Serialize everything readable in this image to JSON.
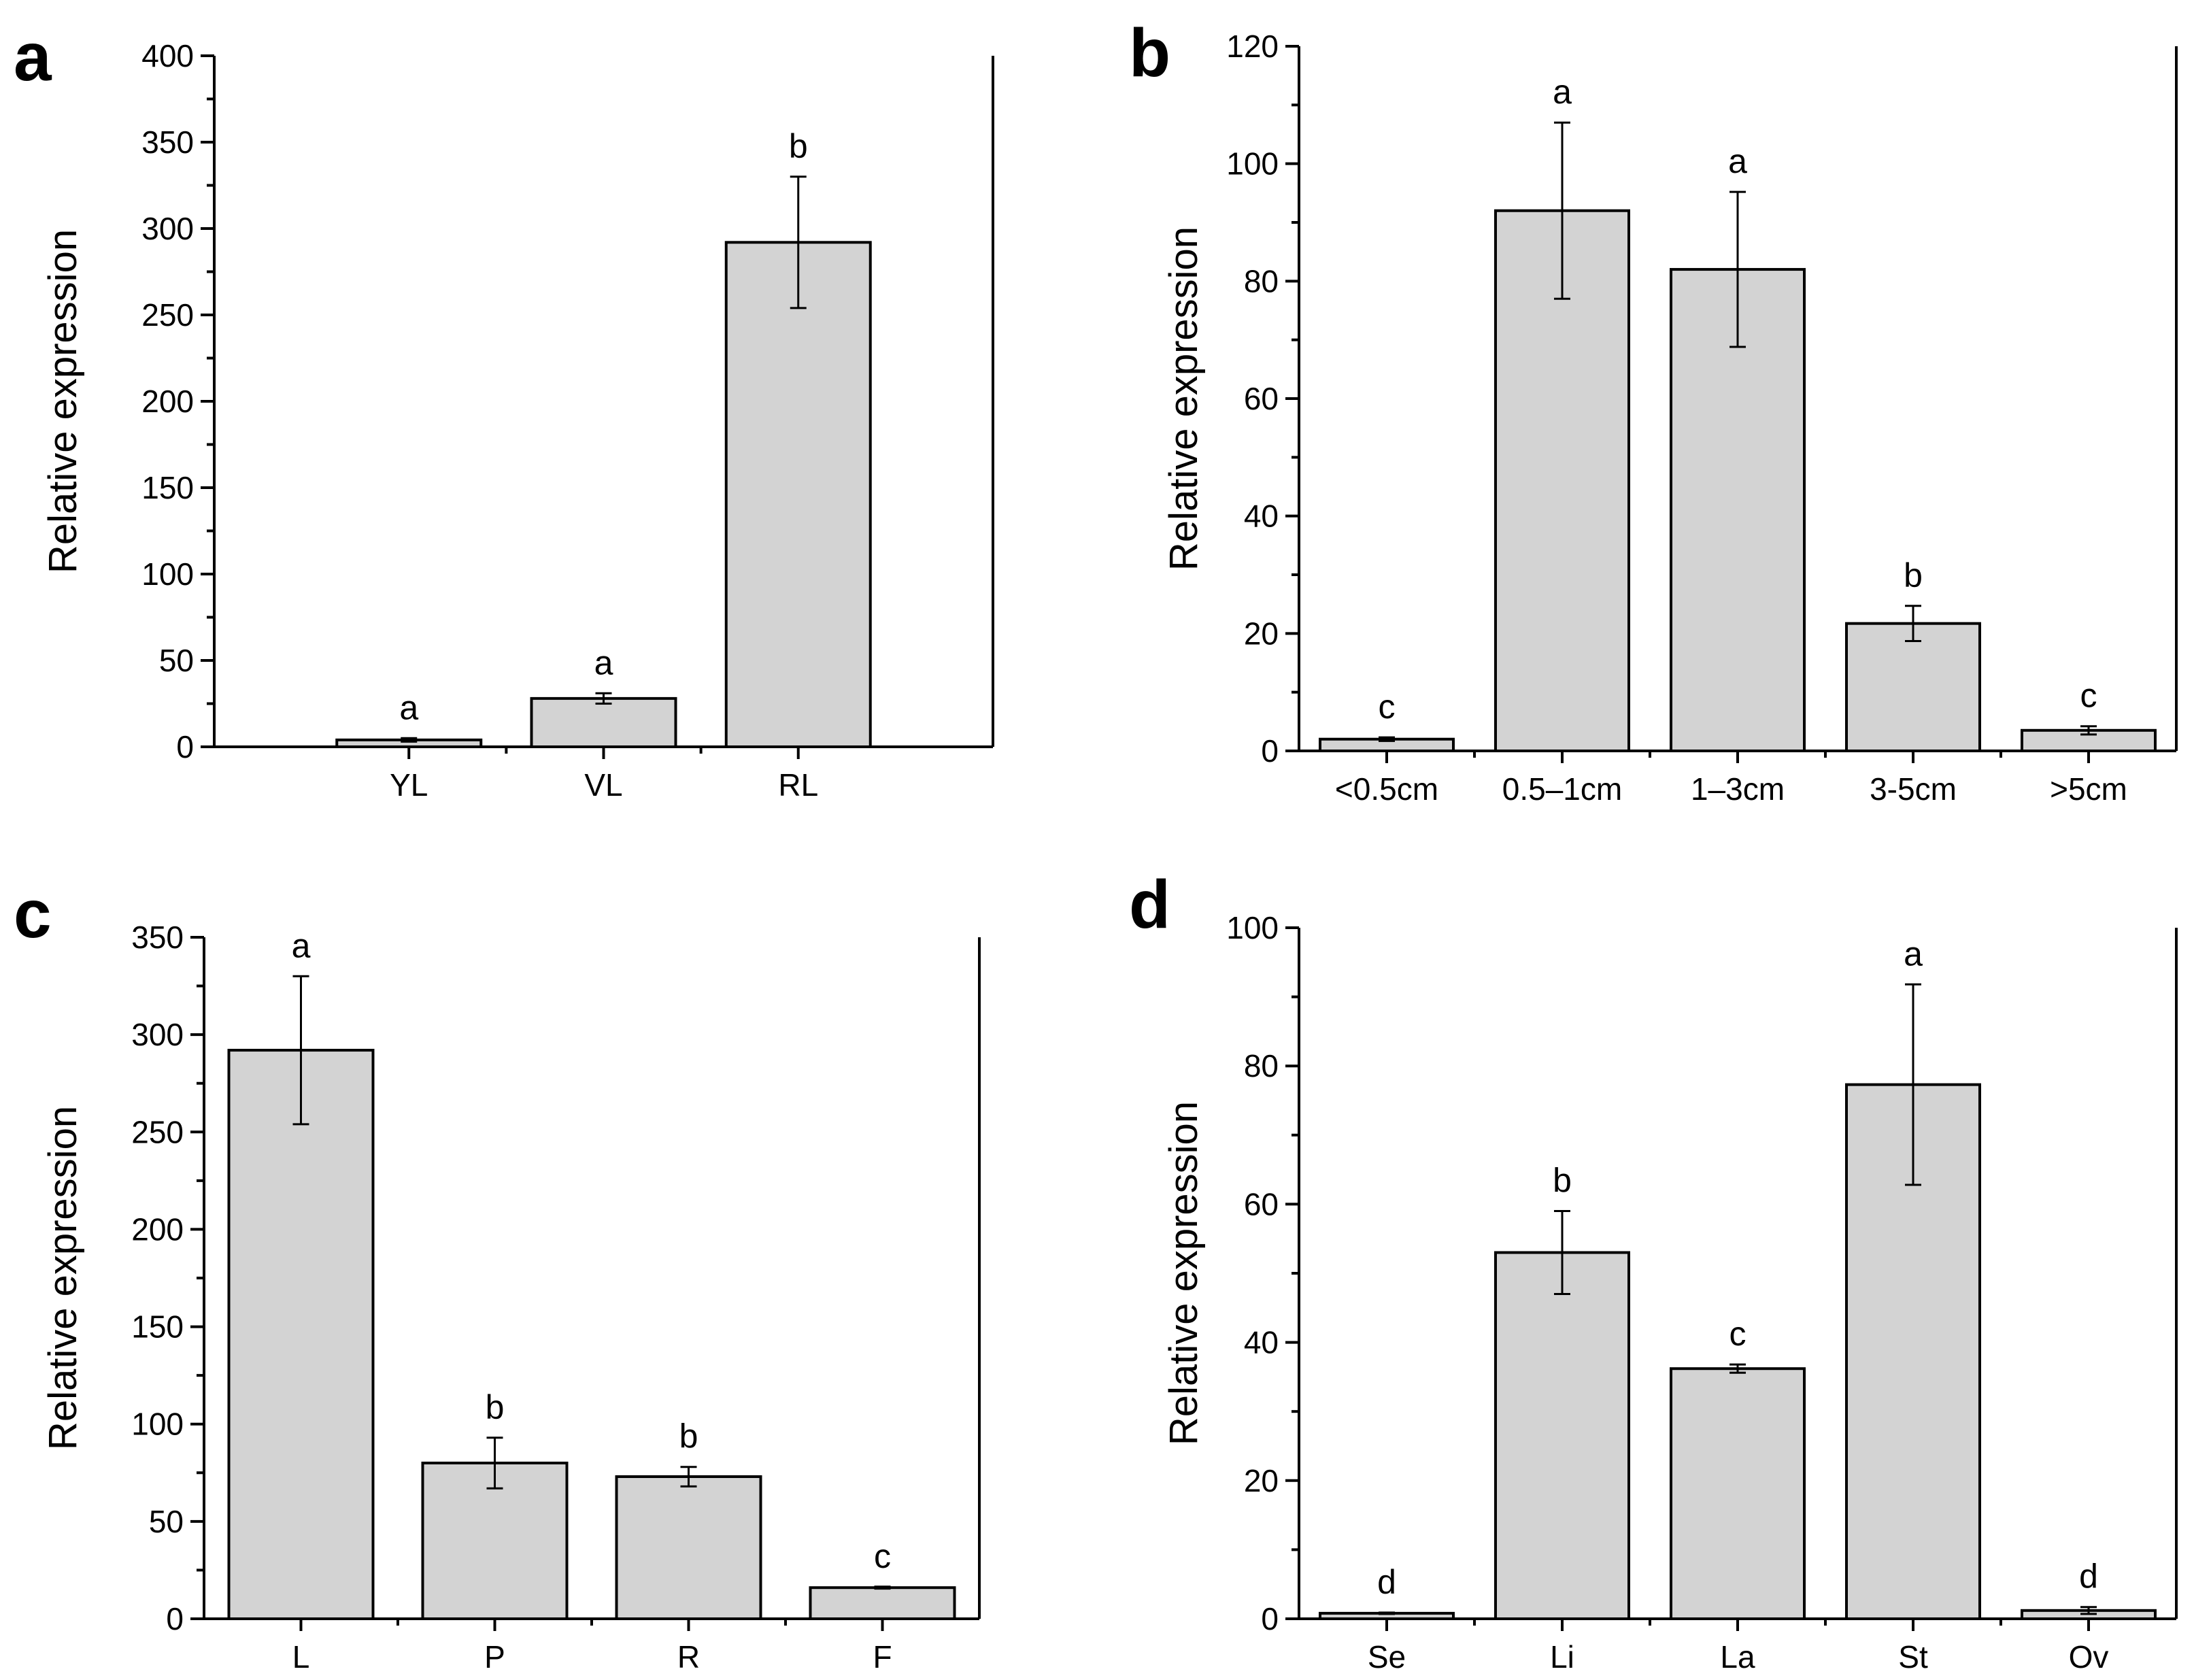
{
  "chart_data": [
    {
      "panel": "a",
      "type": "bar",
      "title": "",
      "xlabel": "",
      "ylabel": "Relative expression",
      "ylim": [
        0,
        400
      ],
      "yticks": [
        0,
        50,
        100,
        150,
        200,
        250,
        300,
        350,
        400
      ],
      "xlim": [
        0,
        4
      ],
      "categories": [
        "YL",
        "VL",
        "RL"
      ],
      "values": [
        4,
        28,
        292
      ],
      "errors": [
        1,
        3,
        38
      ],
      "significance": [
        "a",
        "a",
        "b"
      ]
    },
    {
      "panel": "b",
      "type": "bar",
      "title": "",
      "xlabel": "",
      "ylabel": "Relative expression",
      "ylim": [
        0,
        120
      ],
      "yticks": [
        0,
        20,
        40,
        60,
        80,
        100,
        120
      ],
      "xlim": [
        0.5,
        5.5
      ],
      "categories": [
        "<0.5cm",
        "0.5–1cm",
        "1–3cm",
        "3-5cm",
        ">5cm"
      ],
      "values": [
        2,
        92,
        82,
        21.7,
        3.5
      ],
      "errors": [
        0.3,
        15,
        13.2,
        3,
        0.7
      ],
      "significance": [
        "c",
        "a",
        "a",
        "b",
        "c"
      ]
    },
    {
      "panel": "c",
      "type": "bar",
      "title": "",
      "xlabel": "",
      "ylabel": "Relative expression",
      "ylim": [
        0,
        350
      ],
      "yticks": [
        0,
        50,
        100,
        150,
        200,
        250,
        300,
        350
      ],
      "xlim": [
        0.5,
        4.5
      ],
      "categories": [
        "L",
        "P",
        "R",
        "F"
      ],
      "values": [
        292,
        80,
        73,
        16
      ],
      "errors": [
        38,
        13,
        5,
        0.5
      ],
      "significance": [
        "a",
        "b",
        "b",
        "c"
      ]
    },
    {
      "panel": "d",
      "type": "bar",
      "title": "",
      "xlabel": "",
      "ylabel": "Relative expression",
      "ylim": [
        0,
        100
      ],
      "yticks": [
        0,
        20,
        40,
        60,
        80,
        100
      ],
      "xlim": [
        0.5,
        5.5
      ],
      "categories": [
        "Se",
        "Li",
        "La",
        "St",
        "Ov"
      ],
      "values": [
        0.8,
        53,
        36.2,
        77.3,
        1.2
      ],
      "errors": [
        0.1,
        6,
        0.6,
        14.5,
        0.5
      ],
      "significance": [
        "d",
        "b",
        "c",
        "a",
        "d"
      ]
    }
  ]
}
